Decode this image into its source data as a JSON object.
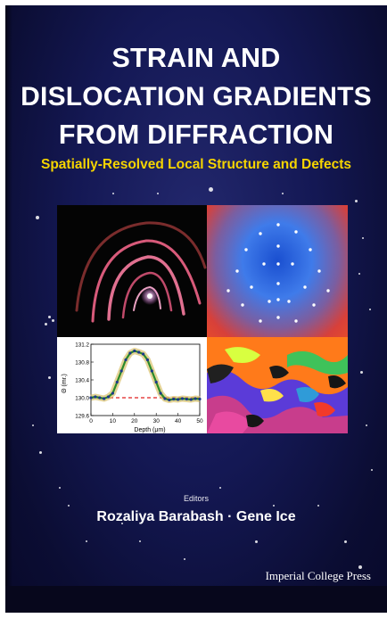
{
  "cover": {
    "title_lines": [
      "STRAIN AND",
      "DISLOCATION GRADIENTS",
      "FROM DIFFRACTION"
    ],
    "subtitle": "Spatially-Resolved Local Structure and Defects",
    "editors_label": "Editors",
    "editors": "Rozaliya Barabash · Gene Ice",
    "publisher": "Imperial College Press",
    "colors": {
      "background": "#141854",
      "title": "#ffffff",
      "subtitle": "#f5d400",
      "plot_data": "#2a8a2a",
      "plot_reference": "#e02020"
    }
  },
  "inset_plot": {
    "xlabel": "Depth (μm)",
    "ylabel": "Θ (mr.)",
    "x_ticks": [
      "0",
      "10",
      "20",
      "30",
      "40",
      "50"
    ],
    "y_ticks": [
      "131.2",
      "130.8",
      "130.4",
      "130.0",
      "129.6"
    ]
  },
  "chart_data": {
    "type": "line",
    "xlabel": "Depth (μm)",
    "ylabel": "Θ (mr.)",
    "xlim": [
      0,
      50
    ],
    "ylim": [
      129.6,
      131.2
    ],
    "grid": false,
    "series": [
      {
        "x": [
          0,
          2,
          4,
          6,
          8,
          10,
          12,
          14,
          16,
          18,
          20,
          22,
          24,
          26,
          28,
          30,
          32,
          34,
          36,
          38,
          40,
          42,
          44,
          46,
          48,
          50
        ],
        "y": [
          130.0,
          130.02,
          130.0,
          129.98,
          130.02,
          130.1,
          130.35,
          130.6,
          130.85,
          131.0,
          131.05,
          131.02,
          130.98,
          130.85,
          130.6,
          130.35,
          130.1,
          129.98,
          129.95,
          129.97,
          129.96,
          129.98,
          129.97,
          129.96,
          129.98,
          129.97
        ]
      },
      {
        "x": [
          0,
          50
        ],
        "y": [
          130.0,
          130.0
        ]
      }
    ]
  }
}
